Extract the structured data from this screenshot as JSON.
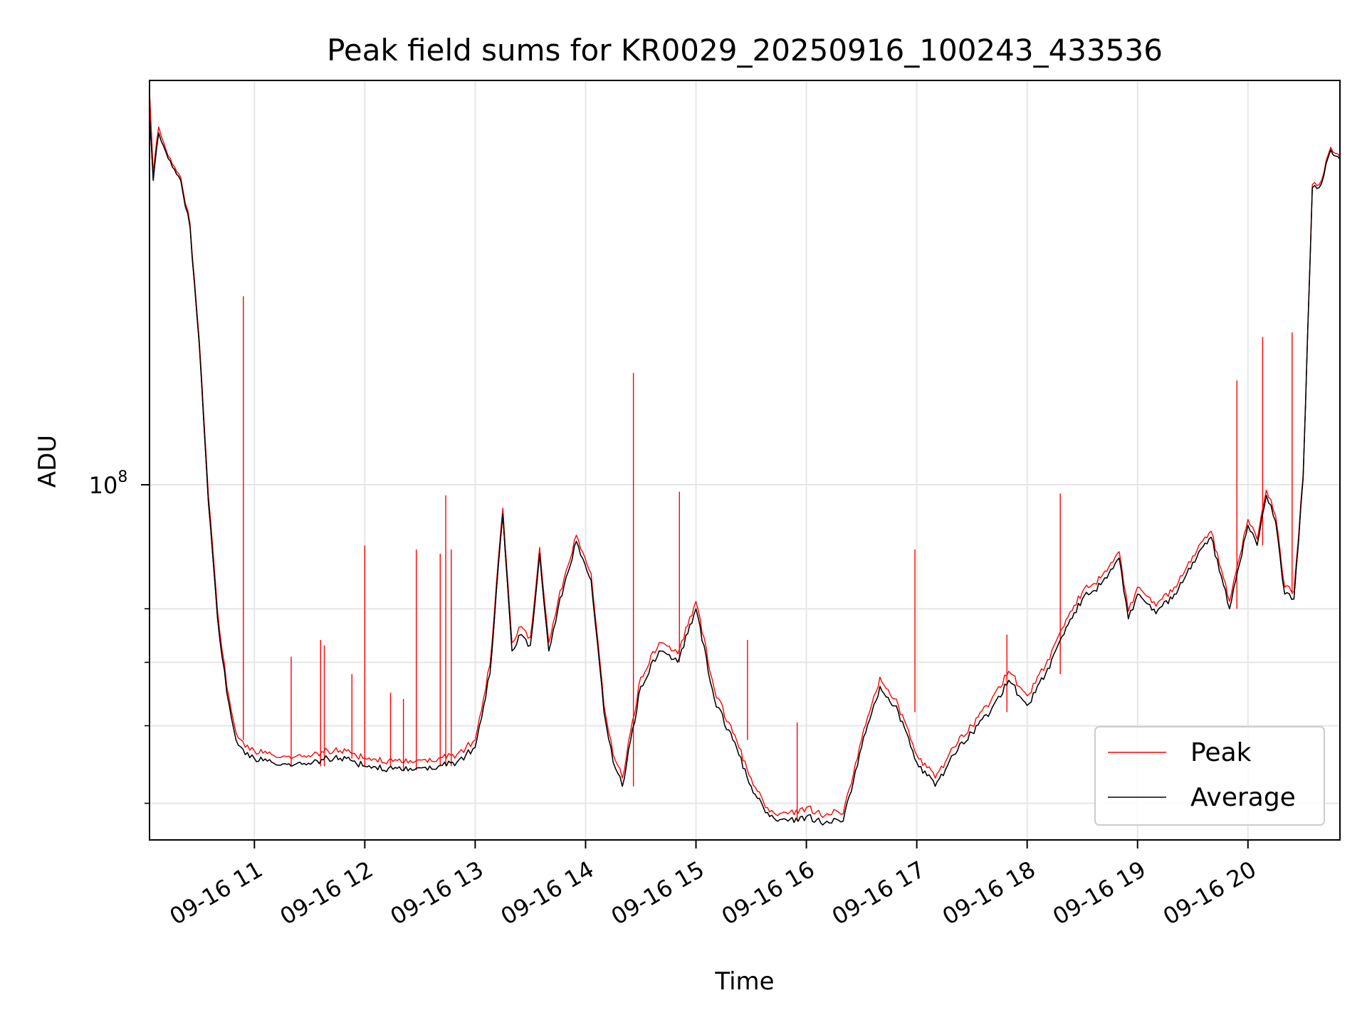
{
  "chart_data": {
    "type": "line",
    "title": "Peak field sums for KR0029_20250916_100243_433536",
    "xlabel": "Time",
    "ylabel": "ADU",
    "y_scale": "log",
    "ylim": [
      36000000,
      320000000
    ],
    "xlim": [
      "2025-09-16 10:03",
      "2025-09-16 20:50"
    ],
    "x_ticks": [
      "09-16 11",
      "09-16 12",
      "09-16 13",
      "09-16 14",
      "09-16 15",
      "09-16 16",
      "09-16 17",
      "09-16 18",
      "09-16 19",
      "09-16 20"
    ],
    "y_tick_major": {
      "value": 100000000,
      "base": "10",
      "exp": "8"
    },
    "y_tick_minor": [
      40000000,
      50000000,
      60000000,
      70000000
    ],
    "grid": true,
    "legend_position": "lower-right",
    "series": [
      {
        "name": "Average",
        "color": "#000000",
        "x": [
          "2025-09-16 10:03",
          "2025-09-16 10:05",
          "2025-09-16 10:08",
          "2025-09-16 10:12",
          "2025-09-16 10:20",
          "2025-09-16 10:25",
          "2025-09-16 10:30",
          "2025-09-16 10:35",
          "2025-09-16 10:40",
          "2025-09-16 10:45",
          "2025-09-16 10:50",
          "2025-09-16 10:55",
          "2025-09-16 11:00",
          "2025-09-16 11:20",
          "2025-09-16 11:40",
          "2025-09-16 11:50",
          "2025-09-16 12:00",
          "2025-09-16 12:20",
          "2025-09-16 12:40",
          "2025-09-16 12:50",
          "2025-09-16 12:55",
          "2025-09-16 13:00",
          "2025-09-16 13:08",
          "2025-09-16 13:15",
          "2025-09-16 13:20",
          "2025-09-16 13:25",
          "2025-09-16 13:30",
          "2025-09-16 13:35",
          "2025-09-16 13:40",
          "2025-09-16 13:45",
          "2025-09-16 13:55",
          "2025-09-16 14:03",
          "2025-09-16 14:10",
          "2025-09-16 14:15",
          "2025-09-16 14:20",
          "2025-09-16 14:30",
          "2025-09-16 14:40",
          "2025-09-16 14:50",
          "2025-09-16 15:00",
          "2025-09-16 15:10",
          "2025-09-16 15:20",
          "2025-09-16 15:30",
          "2025-09-16 15:40",
          "2025-09-16 15:50",
          "2025-09-16 16:00",
          "2025-09-16 16:10",
          "2025-09-16 16:15",
          "2025-09-16 16:20",
          "2025-09-16 16:30",
          "2025-09-16 16:40",
          "2025-09-16 16:50",
          "2025-09-16 17:00",
          "2025-09-16 17:10",
          "2025-09-16 17:20",
          "2025-09-16 17:30",
          "2025-09-16 17:40",
          "2025-09-16 17:50",
          "2025-09-16 18:00",
          "2025-09-16 18:10",
          "2025-09-16 18:20",
          "2025-09-16 18:30",
          "2025-09-16 18:40",
          "2025-09-16 18:50",
          "2025-09-16 18:55",
          "2025-09-16 19:00",
          "2025-09-16 19:10",
          "2025-09-16 19:20",
          "2025-09-16 19:30",
          "2025-09-16 19:40",
          "2025-09-16 19:50",
          "2025-09-16 20:00",
          "2025-09-16 20:05",
          "2025-09-16 20:10",
          "2025-09-16 20:15",
          "2025-09-16 20:20",
          "2025-09-16 20:25",
          "2025-09-16 20:30",
          "2025-09-16 20:35",
          "2025-09-16 20:40",
          "2025-09-16 20:45",
          "2025-09-16 20:50"
        ],
        "y": [
          290000000,
          240000000,
          275000000,
          260000000,
          240000000,
          210000000,
          150000000,
          95000000,
          68000000,
          55000000,
          48000000,
          46000000,
          45500000,
          44500000,
          45500000,
          45500000,
          44500000,
          44000000,
          44500000,
          45000000,
          46000000,
          47000000,
          58000000,
          92000000,
          62000000,
          65000000,
          63000000,
          82000000,
          62000000,
          70000000,
          85000000,
          76000000,
          52000000,
          45000000,
          42000000,
          56000000,
          62000000,
          60000000,
          70000000,
          54000000,
          48000000,
          42000000,
          38500000,
          38000000,
          38500000,
          37800000,
          38300000,
          38000000,
          47000000,
          56000000,
          52000000,
          45000000,
          42000000,
          46000000,
          49000000,
          52000000,
          57000000,
          53000000,
          58000000,
          65000000,
          72000000,
          75000000,
          81000000,
          68000000,
          73000000,
          69000000,
          73000000,
          80000000,
          86000000,
          70000000,
          89000000,
          84000000,
          97000000,
          90000000,
          73000000,
          72000000,
          102000000,
          235000000,
          238000000,
          262000000,
          255000000
        ]
      },
      {
        "name": "Peak",
        "color": "#ff0000",
        "x": [
          "2025-09-16 10:03",
          "2025-09-16 10:05",
          "2025-09-16 10:08",
          "2025-09-16 10:12",
          "2025-09-16 10:20",
          "2025-09-16 10:25",
          "2025-09-16 10:30",
          "2025-09-16 10:35",
          "2025-09-16 10:40",
          "2025-09-16 10:45",
          "2025-09-16 10:50",
          "2025-09-16 10:55",
          "2025-09-16 11:00",
          "2025-09-16 11:20",
          "2025-09-16 11:40",
          "2025-09-16 11:50",
          "2025-09-16 12:00",
          "2025-09-16 12:20",
          "2025-09-16 12:40",
          "2025-09-16 12:50",
          "2025-09-16 12:55",
          "2025-09-16 13:00",
          "2025-09-16 13:08",
          "2025-09-16 13:15",
          "2025-09-16 13:20",
          "2025-09-16 13:25",
          "2025-09-16 13:30",
          "2025-09-16 13:35",
          "2025-09-16 13:40",
          "2025-09-16 13:45",
          "2025-09-16 13:55",
          "2025-09-16 14:03",
          "2025-09-16 14:10",
          "2025-09-16 14:15",
          "2025-09-16 14:20",
          "2025-09-16 14:30",
          "2025-09-16 14:40",
          "2025-09-16 14:50",
          "2025-09-16 15:00",
          "2025-09-16 15:10",
          "2025-09-16 15:20",
          "2025-09-16 15:30",
          "2025-09-16 15:40",
          "2025-09-16 15:50",
          "2025-09-16 16:00",
          "2025-09-16 16:10",
          "2025-09-16 16:15",
          "2025-09-16 16:20",
          "2025-09-16 16:30",
          "2025-09-16 16:40",
          "2025-09-16 16:50",
          "2025-09-16 17:00",
          "2025-09-16 17:10",
          "2025-09-16 17:20",
          "2025-09-16 17:30",
          "2025-09-16 17:40",
          "2025-09-16 17:50",
          "2025-09-16 18:00",
          "2025-09-16 18:10",
          "2025-09-16 18:20",
          "2025-09-16 18:30",
          "2025-09-16 18:40",
          "2025-09-16 18:50",
          "2025-09-16 18:55",
          "2025-09-16 19:00",
          "2025-09-16 19:10",
          "2025-09-16 19:20",
          "2025-09-16 19:30",
          "2025-09-16 19:40",
          "2025-09-16 19:50",
          "2025-09-16 20:00",
          "2025-09-16 20:05",
          "2025-09-16 20:10",
          "2025-09-16 20:15",
          "2025-09-16 20:20",
          "2025-09-16 20:25",
          "2025-09-16 20:30",
          "2025-09-16 20:35",
          "2025-09-16 20:40",
          "2025-09-16 20:45",
          "2025-09-16 20:50"
        ],
        "y": [
          310000000,
          245000000,
          280000000,
          262000000,
          242000000,
          212000000,
          152000000,
          97000000,
          69500000,
          56000000,
          49000000,
          47000000,
          46500000,
          45500000,
          46500000,
          46500000,
          45500000,
          45000000,
          45500000,
          46000000,
          47000000,
          48000000,
          59500000,
          93500000,
          63500000,
          66500000,
          64500000,
          83500000,
          63500000,
          71500000,
          86500000,
          77500000,
          53000000,
          46000000,
          43000000,
          57500000,
          63500000,
          61500000,
          71500000,
          55500000,
          49000000,
          43000000,
          39000000,
          38800000,
          39500000,
          38600000,
          39300000,
          38800000,
          48000000,
          57500000,
          53000000,
          46000000,
          43000000,
          47000000,
          50000000,
          53500000,
          58500000,
          54500000,
          59500000,
          66500000,
          73500000,
          76500000,
          82500000,
          69500000,
          74500000,
          70500000,
          74500000,
          81500000,
          87500000,
          71500000,
          90500000,
          85500000,
          98500000,
          91500000,
          74500000,
          73500000,
          103000000,
          237000000,
          240000000,
          264000000,
          257000000
        ]
      }
    ],
    "peak_spikes": [
      {
        "x": "2025-09-16 10:54",
        "y": 172000000
      },
      {
        "x": "2025-09-16 11:20",
        "y": 61000000
      },
      {
        "x": "2025-09-16 11:36",
        "y": 64000000
      },
      {
        "x": "2025-09-16 11:38",
        "y": 63000000
      },
      {
        "x": "2025-09-16 11:53",
        "y": 58000000
      },
      {
        "x": "2025-09-16 12:00",
        "y": 84000000
      },
      {
        "x": "2025-09-16 12:14",
        "y": 55000000
      },
      {
        "x": "2025-09-16 12:21",
        "y": 54000000
      },
      {
        "x": "2025-09-16 12:28",
        "y": 83000000
      },
      {
        "x": "2025-09-16 12:41",
        "y": 82000000
      },
      {
        "x": "2025-09-16 12:44",
        "y": 97000000
      },
      {
        "x": "2025-09-16 12:47",
        "y": 83000000
      },
      {
        "x": "2025-09-16 14:26",
        "y": 138000000
      },
      {
        "x": "2025-09-16 14:51",
        "y": 98000000
      },
      {
        "x": "2025-09-16 15:28",
        "y": 64000000
      },
      {
        "x": "2025-09-16 15:55",
        "y": 50500000
      },
      {
        "x": "2025-09-16 16:59",
        "y": 83000000
      },
      {
        "x": "2025-09-16 17:49",
        "y": 65000000
      },
      {
        "x": "2025-09-16 18:18",
        "y": 97500000
      },
      {
        "x": "2025-09-16 19:54",
        "y": 135000000
      },
      {
        "x": "2025-09-16 20:08",
        "y": 153000000
      },
      {
        "x": "2025-09-16 20:24",
        "y": 155000000
      }
    ]
  }
}
